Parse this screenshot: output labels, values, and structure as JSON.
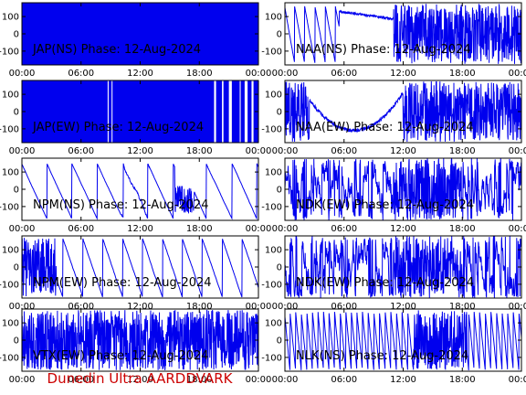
{
  "footer": {
    "text": "Dunedin Ultra AARDDVARK",
    "color": "#cc0000"
  },
  "colors": {
    "trace": "#0000ee",
    "axis": "#000000",
    "background": "#ffffff"
  },
  "chart_data": [
    {
      "type": "line",
      "title": "JAP(NS) Phase: 12-Aug-2024",
      "pattern": "solid",
      "x_ticks": [
        "00:00",
        "06:00",
        "12:00",
        "18:00",
        "00:00"
      ],
      "y_ticks": [
        100,
        0,
        -100
      ],
      "xlim": [
        0,
        24
      ],
      "ylim": [
        -180,
        180
      ]
    },
    {
      "type": "line",
      "title": "NAA(NS) Phase: 12-Aug-2024",
      "pattern": "naa_ns",
      "x_ticks": [
        "00:00",
        "06:00",
        "12:00",
        "18:00",
        "00:00"
      ],
      "y_ticks": [
        100,
        0,
        -100
      ],
      "xlim": [
        0,
        24
      ],
      "ylim": [
        -180,
        180
      ]
    },
    {
      "type": "line",
      "title": "JAP(EW) Phase: 12-Aug-2024",
      "pattern": "solid_gaps",
      "x_ticks": [
        "00:00",
        "06:00",
        "12:00",
        "18:00",
        "00:00"
      ],
      "y_ticks": [
        100,
        0,
        -100
      ],
      "xlim": [
        0,
        24
      ],
      "ylim": [
        -180,
        180
      ]
    },
    {
      "type": "line",
      "title": "NAA(EW) Phase: 12-Aug-2024",
      "pattern": "naa_ew",
      "x_ticks": [
        "00:00",
        "06:00",
        "12:00",
        "18:00",
        "00:00"
      ],
      "y_ticks": [
        100,
        0,
        -100
      ],
      "xlim": [
        0,
        24
      ],
      "ylim": [
        -180,
        180
      ]
    },
    {
      "type": "line",
      "title": "NPM(NS) Phase: 12-Aug-2024",
      "pattern": "npm_ns",
      "x_ticks": [
        "00:00",
        "06:00",
        "12:00",
        "18:00",
        "00:00"
      ],
      "y_ticks": [
        100,
        0,
        -100
      ],
      "xlim": [
        0,
        24
      ],
      "ylim": [
        -180,
        180
      ]
    },
    {
      "type": "line",
      "title": "NDK(EW) Phase: 12-Aug-2024",
      "pattern": "noisy_wrap",
      "x_ticks": [
        "00:00",
        "06:00",
        "12:00",
        "18:00",
        "00:00"
      ],
      "y_ticks": [
        100,
        0,
        -100
      ],
      "xlim": [
        0,
        24
      ],
      "ylim": [
        -180,
        180
      ]
    },
    {
      "type": "line",
      "title": "NPM(EW) Phase: 12-Aug-2024",
      "pattern": "npm_ew",
      "x_ticks": [
        "00:00",
        "06:00",
        "12:00",
        "18:00",
        "00:00"
      ],
      "y_ticks": [
        100,
        0,
        -100
      ],
      "xlim": [
        0,
        24
      ],
      "ylim": [
        -180,
        180
      ]
    },
    {
      "type": "line",
      "title": "NDK(EW) Phase: 12-Aug-2024",
      "pattern": "noisy_wrap",
      "x_ticks": [
        "00:00",
        "06:00",
        "12:00",
        "18:00",
        "00:00"
      ],
      "y_ticks": [
        100,
        0,
        -100
      ],
      "xlim": [
        0,
        24
      ],
      "ylim": [
        -180,
        180
      ]
    },
    {
      "type": "line",
      "title": "VTX(EW) Phase: 12-Aug-2024",
      "pattern": "noise",
      "x_ticks": [
        "00:00",
        "06:00",
        "12:00",
        "18:00",
        "00:00"
      ],
      "y_ticks": [
        100,
        0,
        -100
      ],
      "xlim": [
        0,
        24
      ],
      "ylim": [
        -180,
        180
      ]
    },
    {
      "type": "line",
      "title": "NLK(NS) Phase: 12-Aug-2024",
      "pattern": "sawtooth",
      "x_ticks": [
        "00:00",
        "06:00",
        "12:00",
        "18:00",
        "00:00"
      ],
      "y_ticks": [
        100,
        0,
        -100
      ],
      "xlim": [
        0,
        24
      ],
      "ylim": [
        -180,
        180
      ]
    }
  ]
}
